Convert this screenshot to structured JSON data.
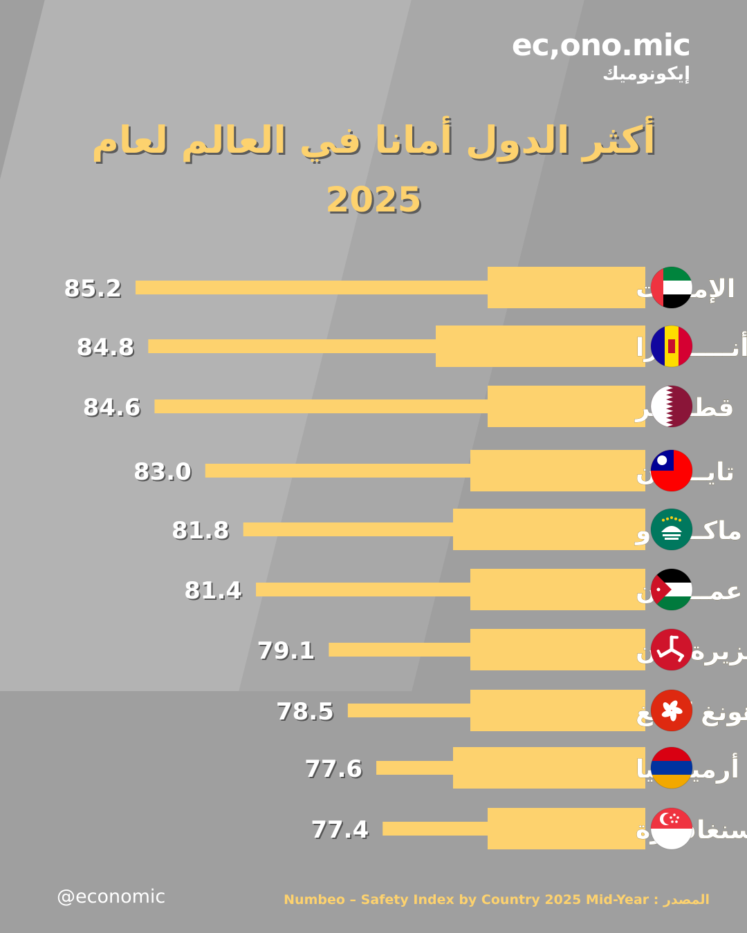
{
  "brand": {
    "name": "ec,ono.mic",
    "name_arabic": "إيكونوميك"
  },
  "title": {
    "line1": "أكثر الدول أمانا في العالم لعام",
    "line2": "2025"
  },
  "footer": {
    "handle": "@economic",
    "source_label": "المصدر :",
    "source_text": "Numbeo – Safety Index by Country 2025 Mid-Year"
  },
  "colors": {
    "background": "#9f9f9f",
    "accent": "#fdd26e",
    "text": "#ffffff"
  },
  "chart_data": {
    "type": "bar",
    "orientation": "horizontal",
    "categories": [
      "الإمارات",
      "أنـــــدورا",
      "قطـــــر",
      "تايـــوان",
      "ماكـــــاو",
      "عمـــــان",
      "جزيرة مان",
      "هونغ كونغ",
      "أرمينـــيا",
      "سنغافورة"
    ],
    "flags": [
      "uae-flag-icon",
      "andorra-flag-icon",
      "qatar-flag-icon",
      "taiwan-flag-icon",
      "macao-flag-icon",
      "jordan-flag-icon",
      "isle-of-man-flag-icon",
      "hong-kong-flag-icon",
      "armenia-flag-icon",
      "singapore-flag-icon"
    ],
    "values": [
      85.2,
      84.8,
      84.6,
      83.0,
      81.8,
      81.4,
      79.1,
      78.5,
      77.6,
      77.4
    ],
    "value_labels": [
      "85.2",
      "84.8",
      "84.6",
      "83.0",
      "81.8",
      "81.4",
      "79.1",
      "78.5",
      "77.6",
      "77.4"
    ]
  }
}
